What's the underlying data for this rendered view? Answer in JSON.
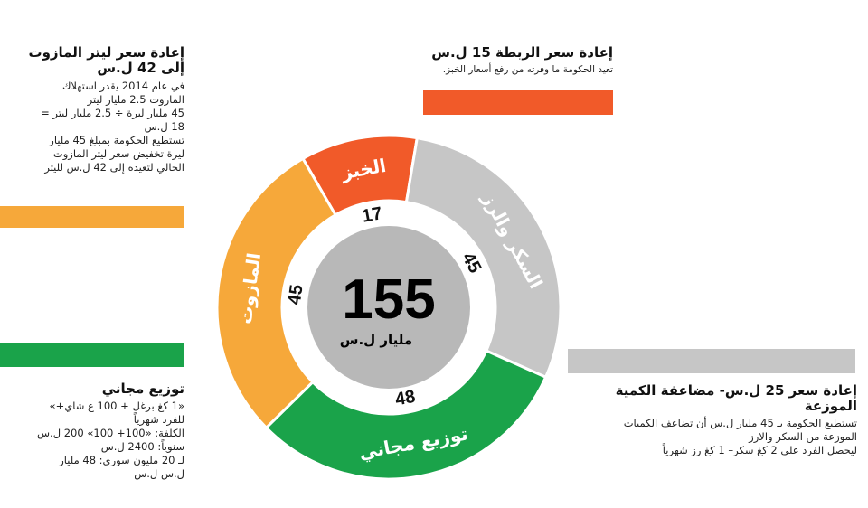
{
  "chart_data": {
    "type": "pie",
    "center_value": "155",
    "center_unit": "مليار ل.س",
    "slices": [
      {
        "label": "الخبز",
        "value": 17,
        "value_label": "17",
        "color": "#f15a29"
      },
      {
        "label": "السكر والرز",
        "value": 45,
        "value_label": "45",
        "color": "#c6c6c6"
      },
      {
        "label": "توزيع مجاني",
        "value": 48,
        "value_label": "48",
        "color": "#1aa34a"
      },
      {
        "label": "المازوت",
        "value": 45,
        "value_label": "45",
        "color": "#f6a83a"
      }
    ]
  },
  "annotations": {
    "mazout": {
      "title": "إعادة سعر ليتر المازوت إلى 42 ل.س",
      "lines": [
        "في عام 2014 يقدر استهلاك",
        "المازوت 2.5 مليار ليتر",
        "45 مليار ليرة ÷ 2.5 مليار ليتر =",
        "18 ل.س",
        "تستطيع الحكومة بمبلغ 45 مليار",
        "ليرة تخفيض سعر ليتر المازوت",
        "الحالي لتعيده إلى 42 ل.س لليتر"
      ],
      "color": "#f6a83a"
    },
    "bread": {
      "title": "إعادة سعر الربطة 15 ل.س",
      "lines": [
        "تعيد الحكومة ما وفرته من رفع أسعار الخبز."
      ],
      "color": "#f15a29"
    },
    "free": {
      "title": "توزيع مجاني",
      "lines": [
        "«1 كغ برغل + 100 غ شاي+»",
        "للفرد شهرياً",
        "الكلفة: «100+ 100» 200 ل.س",
        "سنوياً: 2400 ل.س",
        "لـ 20 مليون سوري: 48 مليار",
        "ل.س ل.س"
      ],
      "color": "#1aa34a"
    },
    "sugar": {
      "title": "إعادة سعر 25 ل.س- مضاعفة الكمية الموزعة",
      "lines": [
        "تستطيع الحكومة بـ 45 مليار ل.س أن تضاعف الكميات",
        "الموزعة من السكر والارز",
        "ليحصل الفرد على 2 كغ سكر– 1 كغ رز شهرياً"
      ],
      "color": "#c6c6c6"
    }
  }
}
